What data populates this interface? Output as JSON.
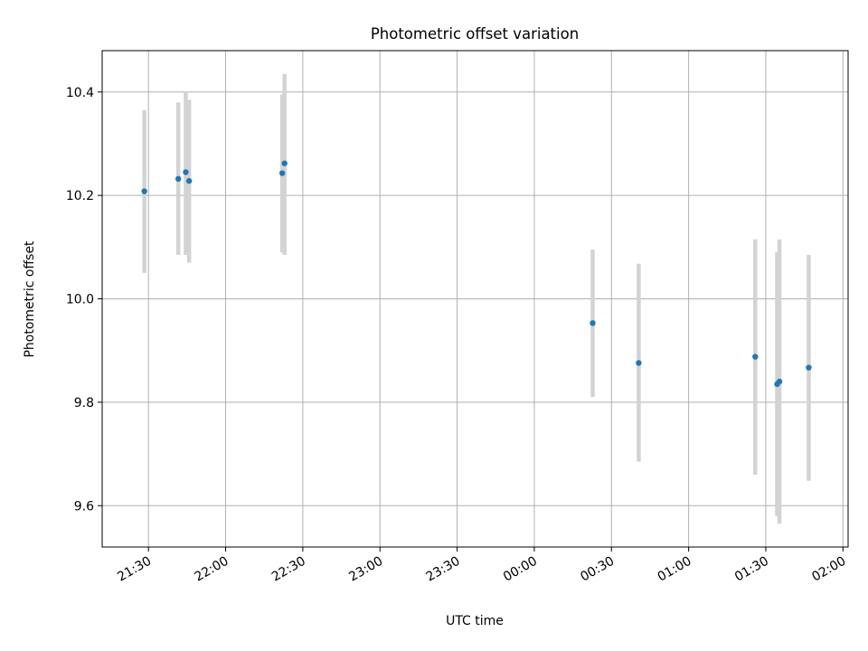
{
  "chart_data": {
    "type": "scatter",
    "title": "Photometric offset variation",
    "xlabel": "UTC time",
    "ylabel": "Photometric offset",
    "x_axis": {
      "type": "time",
      "range_minutes": [
        1272,
        1562
      ],
      "ticks": [
        {
          "minute": 1290,
          "label": "21:30"
        },
        {
          "minute": 1320,
          "label": "22:00"
        },
        {
          "minute": 1350,
          "label": "22:30"
        },
        {
          "minute": 1380,
          "label": "23:00"
        },
        {
          "minute": 1410,
          "label": "23:30"
        },
        {
          "minute": 1440,
          "label": "00:00"
        },
        {
          "minute": 1470,
          "label": "00:30"
        },
        {
          "minute": 1500,
          "label": "01:00"
        },
        {
          "minute": 1530,
          "label": "01:30"
        },
        {
          "minute": 1560,
          "label": "02:00"
        }
      ]
    },
    "y_axis": {
      "range": [
        9.52,
        10.48
      ],
      "ticks": [
        {
          "value": 9.6,
          "label": "9.6"
        },
        {
          "value": 9.8,
          "label": "9.8"
        },
        {
          "value": 10.0,
          "label": "10.0"
        },
        {
          "value": 10.2,
          "label": "10.2"
        },
        {
          "value": 10.4,
          "label": "10.4"
        }
      ]
    },
    "grid": true,
    "point_color": "#1f77b4",
    "errorbar_color": "#d3d3d3",
    "points": [
      {
        "t": 1288.4,
        "y": 10.208,
        "err_lo": 10.05,
        "err_hi": 10.365
      },
      {
        "t": 1301.6,
        "y": 10.232,
        "err_lo": 10.085,
        "err_hi": 10.38
      },
      {
        "t": 1304.5,
        "y": 10.245,
        "err_lo": 10.085,
        "err_hi": 10.4
      },
      {
        "t": 1305.8,
        "y": 10.228,
        "err_lo": 10.07,
        "err_hi": 10.385
      },
      {
        "t": 1342.0,
        "y": 10.243,
        "err_lo": 10.09,
        "err_hi": 10.395
      },
      {
        "t": 1342.9,
        "y": 10.262,
        "err_lo": 10.085,
        "err_hi": 10.435
      },
      {
        "t": 1462.7,
        "y": 9.953,
        "err_lo": 9.81,
        "err_hi": 10.095
      },
      {
        "t": 1480.6,
        "y": 9.876,
        "err_lo": 9.685,
        "err_hi": 10.068
      },
      {
        "t": 1525.9,
        "y": 9.888,
        "err_lo": 9.66,
        "err_hi": 10.115
      },
      {
        "t": 1534.4,
        "y": 9.835,
        "err_lo": 9.58,
        "err_hi": 10.09
      },
      {
        "t": 1535.3,
        "y": 9.84,
        "err_lo": 9.565,
        "err_hi": 10.115
      },
      {
        "t": 1546.7,
        "y": 9.867,
        "err_lo": 9.648,
        "err_hi": 10.085
      }
    ]
  }
}
